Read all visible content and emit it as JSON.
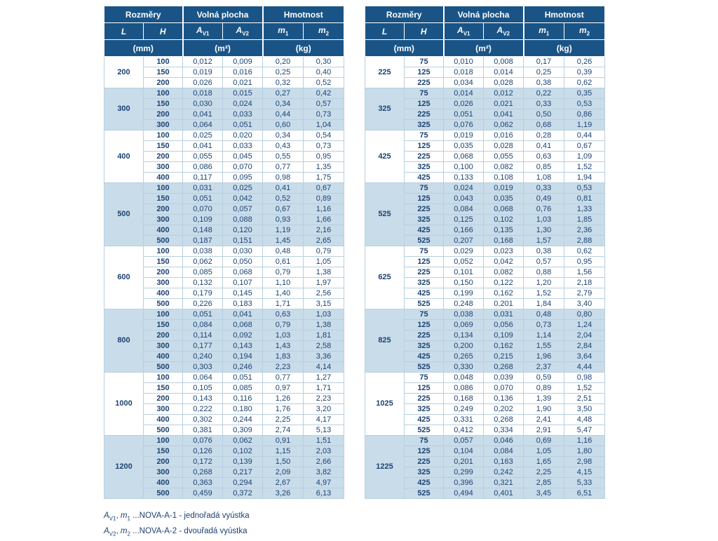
{
  "header": {
    "rozmery": "Rozměry",
    "volna_plocha": "Volná plocha",
    "hmotnost": "Hmotnost",
    "col_l": "L",
    "col_h": "H",
    "a_main": "A",
    "a1_sub": "V1",
    "a2_sub": "V2",
    "m_main": "m",
    "m1_sub": "1",
    "m2_sub": "2",
    "unit_mm": "(mm)",
    "unit_m2": "(m²)",
    "unit_kg": "(kg)"
  },
  "colors": {
    "header_blue": "#1a5486",
    "shade_blue": "#c9dcea",
    "text_navy": "#1c4271",
    "grid_line": "#b9cfdf"
  },
  "tables": [
    {
      "name": "left",
      "groups": [
        {
          "L": "200",
          "rows": [
            [
              "100",
              "0,012",
              "0,009",
              "0,20",
              "0,30"
            ],
            [
              "150",
              "0,019",
              "0,016",
              "0,25",
              "0,40"
            ],
            [
              "200",
              "0,026",
              "0,021",
              "0,32",
              "0,52"
            ]
          ]
        },
        {
          "L": "300",
          "rows": [
            [
              "100",
              "0,018",
              "0,015",
              "0,27",
              "0,42"
            ],
            [
              "150",
              "0,030",
              "0,024",
              "0,34",
              "0,57"
            ],
            [
              "200",
              "0,041",
              "0,033",
              "0,44",
              "0,73"
            ],
            [
              "300",
              "0,064",
              "0,051",
              "0,60",
              "1,04"
            ]
          ]
        },
        {
          "L": "400",
          "rows": [
            [
              "100",
              "0,025",
              "0,020",
              "0,34",
              "0,54"
            ],
            [
              "150",
              "0,041",
              "0,033",
              "0,43",
              "0,73"
            ],
            [
              "200",
              "0,055",
              "0,045",
              "0,55",
              "0,95"
            ],
            [
              "300",
              "0,086",
              "0,070",
              "0,77",
              "1,35"
            ],
            [
              "400",
              "0,117",
              "0,095",
              "0,98",
              "1,75"
            ]
          ]
        },
        {
          "L": "500",
          "rows": [
            [
              "100",
              "0,031",
              "0,025",
              "0,41",
              "0,67"
            ],
            [
              "150",
              "0,051",
              "0,042",
              "0,52",
              "0,89"
            ],
            [
              "200",
              "0,070",
              "0,057",
              "0,67",
              "1,16"
            ],
            [
              "300",
              "0,109",
              "0,088",
              "0,93",
              "1,66"
            ],
            [
              "400",
              "0,148",
              "0,120",
              "1,19",
              "2,16"
            ],
            [
              "500",
              "0,187",
              "0,151",
              "1,45",
              "2,65"
            ]
          ]
        },
        {
          "L": "600",
          "rows": [
            [
              "100",
              "0,038",
              "0,030",
              "0,48",
              "0,79"
            ],
            [
              "150",
              "0,062",
              "0,050",
              "0,61",
              "1,05"
            ],
            [
              "200",
              "0,085",
              "0,068",
              "0,79",
              "1,38"
            ],
            [
              "300",
              "0,132",
              "0,107",
              "1,10",
              "1,97"
            ],
            [
              "400",
              "0,179",
              "0,145",
              "1,40",
              "2,56"
            ],
            [
              "500",
              "0,226",
              "0,183",
              "1,71",
              "3,15"
            ]
          ]
        },
        {
          "L": "800",
          "rows": [
            [
              "100",
              "0,051",
              "0,041",
              "0,63",
              "1,03"
            ],
            [
              "150",
              "0,084",
              "0,068",
              "0,79",
              "1,38"
            ],
            [
              "200",
              "0,114",
              "0,092",
              "1,03",
              "1,81"
            ],
            [
              "300",
              "0,177",
              "0,143",
              "1,43",
              "2,58"
            ],
            [
              "400",
              "0,240",
              "0,194",
              "1,83",
              "3,36"
            ],
            [
              "500",
              "0,303",
              "0,246",
              "2,23",
              "4,14"
            ]
          ]
        },
        {
          "L": "1000",
          "rows": [
            [
              "100",
              "0,064",
              "0,051",
              "0,77",
              "1,27"
            ],
            [
              "150",
              "0,105",
              "0,085",
              "0,97",
              "1,71"
            ],
            [
              "200",
              "0,143",
              "0,116",
              "1,26",
              "2,23"
            ],
            [
              "300",
              "0,222",
              "0,180",
              "1,76",
              "3,20"
            ],
            [
              "400",
              "0,302",
              "0,244",
              "2,25",
              "4,17"
            ],
            [
              "500",
              "0,381",
              "0,309",
              "2,74",
              "5,13"
            ]
          ]
        },
        {
          "L": "1200",
          "rows": [
            [
              "100",
              "0,076",
              "0,062",
              "0,91",
              "1,51"
            ],
            [
              "150",
              "0,126",
              "0,102",
              "1,15",
              "2,03"
            ],
            [
              "200",
              "0,172",
              "0,139",
              "1,50",
              "2,66"
            ],
            [
              "300",
              "0,268",
              "0,217",
              "2,09",
              "3,82"
            ],
            [
              "400",
              "0,363",
              "0,294",
              "2,67",
              "4,97"
            ],
            [
              "500",
              "0,459",
              "0,372",
              "3,26",
              "6,13"
            ]
          ]
        }
      ]
    },
    {
      "name": "right",
      "groups": [
        {
          "L": "225",
          "rows": [
            [
              "75",
              "0,010",
              "0,008",
              "0,17",
              "0,26"
            ],
            [
              "125",
              "0,018",
              "0,014",
              "0,25",
              "0,39"
            ],
            [
              "225",
              "0,034",
              "0,028",
              "0,38",
              "0,62"
            ]
          ]
        },
        {
          "L": "325",
          "rows": [
            [
              "75",
              "0,014",
              "0,012",
              "0,22",
              "0,35"
            ],
            [
              "125",
              "0,026",
              "0,021",
              "0,33",
              "0,53"
            ],
            [
              "225",
              "0,051",
              "0,041",
              "0,50",
              "0,86"
            ],
            [
              "325",
              "0,076",
              "0,062",
              "0,68",
              "1,19"
            ]
          ]
        },
        {
          "L": "425",
          "rows": [
            [
              "75",
              "0,019",
              "0,016",
              "0,28",
              "0,44"
            ],
            [
              "125",
              "0,035",
              "0,028",
              "0,41",
              "0,67"
            ],
            [
              "225",
              "0,068",
              "0,055",
              "0,63",
              "1,09"
            ],
            [
              "325",
              "0,100",
              "0,082",
              "0,85",
              "1,52"
            ],
            [
              "425",
              "0,133",
              "0,108",
              "1,08",
              "1,94"
            ]
          ]
        },
        {
          "L": "525",
          "rows": [
            [
              "75",
              "0,024",
              "0,019",
              "0,33",
              "0,53"
            ],
            [
              "125",
              "0,043",
              "0,035",
              "0,49",
              "0,81"
            ],
            [
              "225",
              "0,084",
              "0,068",
              "0,76",
              "1,33"
            ],
            [
              "325",
              "0,125",
              "0,102",
              "1,03",
              "1,85"
            ],
            [
              "425",
              "0,166",
              "0,135",
              "1,30",
              "2,36"
            ],
            [
              "525",
              "0,207",
              "0,168",
              "1,57",
              "2,88"
            ]
          ]
        },
        {
          "L": "625",
          "rows": [
            [
              "75",
              "0,029",
              "0,023",
              "0,38",
              "0,62"
            ],
            [
              "125",
              "0,052",
              "0,042",
              "0,57",
              "0,95"
            ],
            [
              "225",
              "0,101",
              "0,082",
              "0,88",
              "1,56"
            ],
            [
              "325",
              "0,150",
              "0,122",
              "1,20",
              "2,18"
            ],
            [
              "425",
              "0,199",
              "0,162",
              "1,52",
              "2,79"
            ],
            [
              "525",
              "0,248",
              "0,201",
              "1,84",
              "3,40"
            ]
          ]
        },
        {
          "L": "825",
          "rows": [
            [
              "75",
              "0,038",
              "0,031",
              "0,48",
              "0,80"
            ],
            [
              "125",
              "0,069",
              "0,056",
              "0,73",
              "1,24"
            ],
            [
              "225",
              "0,134",
              "0,109",
              "1,14",
              "2,04"
            ],
            [
              "325",
              "0,200",
              "0,162",
              "1,55",
              "2,84"
            ],
            [
              "425",
              "0,265",
              "0,215",
              "1,96",
              "3,64"
            ],
            [
              "525",
              "0,330",
              "0,268",
              "2,37",
              "4,44"
            ]
          ]
        },
        {
          "L": "1025",
          "rows": [
            [
              "75",
              "0,048",
              "0,039",
              "0,59",
              "0,98"
            ],
            [
              "125",
              "0,086",
              "0,070",
              "0,89",
              "1,52"
            ],
            [
              "225",
              "0,168",
              "0,136",
              "1,39",
              "2,51"
            ],
            [
              "325",
              "0,249",
              "0,202",
              "1,90",
              "3,50"
            ],
            [
              "425",
              "0,331",
              "0,268",
              "2,41",
              "4,48"
            ],
            [
              "525",
              "0,412",
              "0,334",
              "2,91",
              "5,47"
            ]
          ]
        },
        {
          "L": "1225",
          "rows": [
            [
              "75",
              "0,057",
              "0,046",
              "0,69",
              "1,16"
            ],
            [
              "125",
              "0,104",
              "0,084",
              "1,05",
              "1,80"
            ],
            [
              "225",
              "0,201",
              "0,163",
              "1,65",
              "2,98"
            ],
            [
              "325",
              "0,299",
              "0,242",
              "2,25",
              "4,15"
            ],
            [
              "425",
              "0,396",
              "0,321",
              "2,85",
              "5,33"
            ],
            [
              "525",
              "0,494",
              "0,401",
              "3,45",
              "6,51"
            ]
          ]
        }
      ]
    }
  ],
  "footnotes": [
    {
      "sym_a": "A",
      "sub_a": "V1",
      "sym_m": "m",
      "sub_m": "1",
      "text": "...NOVA-A-1 - jednořadá vyústka"
    },
    {
      "sym_a": "A",
      "sub_a": "V2",
      "sym_m": "m",
      "sub_m": "2",
      "text": "...NOVA-A-2 - dvouřadá vyústka"
    }
  ]
}
